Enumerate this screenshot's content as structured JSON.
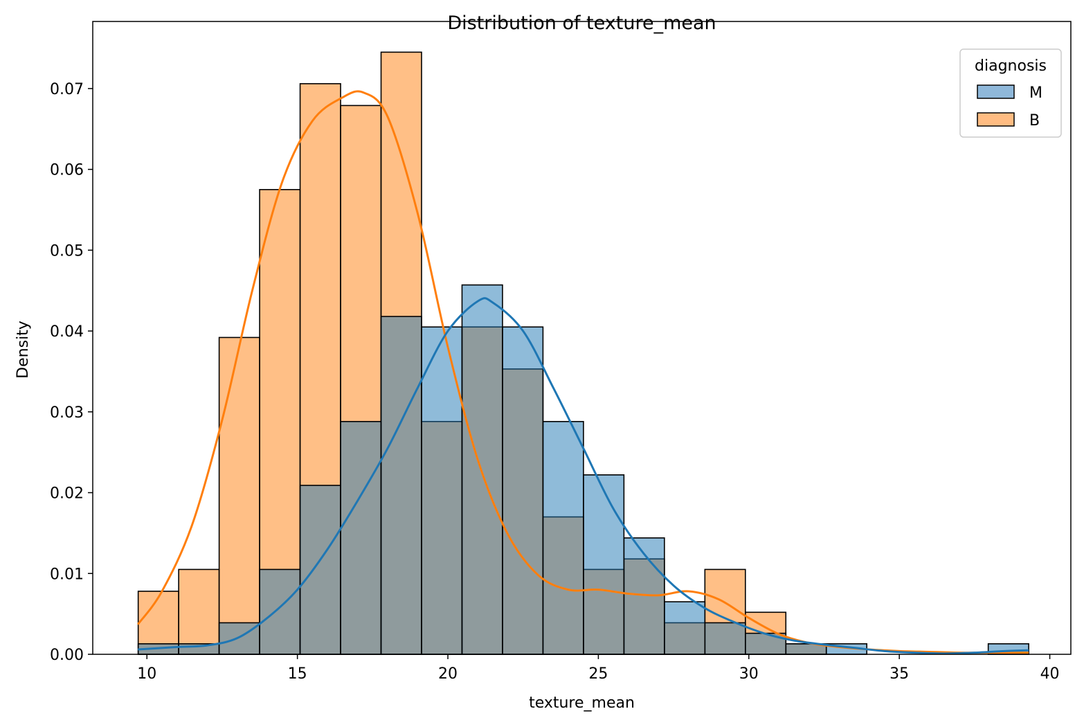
{
  "chart_data": {
    "type": "histogram",
    "title": "Distribution of texture_mean",
    "xlabel": "texture_mean",
    "ylabel": "Density",
    "xlim": [
      8.2,
      40.7
    ],
    "ylim": [
      0,
      0.0783
    ],
    "xticks": [
      10,
      15,
      20,
      25,
      30,
      35,
      40
    ],
    "yticks": [
      0.0,
      0.01,
      0.02,
      0.03,
      0.04,
      0.05,
      0.06,
      0.07
    ],
    "ytick_labels": [
      "0.00",
      "0.01",
      "0.02",
      "0.03",
      "0.04",
      "0.05",
      "0.06",
      "0.07"
    ],
    "grid": false,
    "legend": {
      "title": "diagnosis",
      "placement": "top-right",
      "entries": [
        "M",
        "B"
      ]
    },
    "bin_edges": [
      9.71,
      11.055,
      12.4,
      13.745,
      15.09,
      16.435,
      17.78,
      19.125,
      20.47,
      21.815,
      23.16,
      24.505,
      25.85,
      27.195,
      28.54,
      29.885,
      31.23,
      32.575,
      33.92,
      35.265,
      36.61,
      37.955,
      39.3
    ],
    "series": [
      {
        "name": "B",
        "color": "#ff7f0e",
        "fill": "#ffbc82",
        "density": [
          0.0078,
          0.0105,
          0.0392,
          0.0575,
          0.0706,
          0.0679,
          0.0745,
          0.0288,
          0.0405,
          0.0353,
          0.017,
          0.0105,
          0.0118,
          0.0039,
          0.0105,
          0.0052,
          0.0013,
          0.0,
          0.0,
          0.0,
          0.0,
          0.0
        ],
        "kde": [
          [
            9.7,
            0.0037
          ],
          [
            10.5,
            0.0078
          ],
          [
            11.5,
            0.016
          ],
          [
            12.5,
            0.029
          ],
          [
            13.5,
            0.045
          ],
          [
            14.5,
            0.0585
          ],
          [
            15.5,
            0.066
          ],
          [
            16.5,
            0.0689
          ],
          [
            17.2,
            0.0695
          ],
          [
            18.0,
            0.0665
          ],
          [
            19.0,
            0.0545
          ],
          [
            20.0,
            0.038
          ],
          [
            21.0,
            0.024
          ],
          [
            22.0,
            0.0148
          ],
          [
            23.0,
            0.0098
          ],
          [
            24.0,
            0.008
          ],
          [
            25.0,
            0.008
          ],
          [
            26.0,
            0.0075
          ],
          [
            27.0,
            0.0073
          ],
          [
            28.0,
            0.0078
          ],
          [
            29.0,
            0.0068
          ],
          [
            30.0,
            0.0045
          ],
          [
            31.0,
            0.0025
          ],
          [
            32.0,
            0.0014
          ],
          [
            33.0,
            0.0009
          ],
          [
            34.0,
            0.0006
          ],
          [
            35.0,
            0.0004
          ],
          [
            36.0,
            0.0003
          ],
          [
            37.0,
            0.0002
          ],
          [
            38.0,
            0.0002
          ],
          [
            39.3,
            0.0002
          ]
        ]
      },
      {
        "name": "M",
        "color": "#1f77b4",
        "fill": "#8fb8da",
        "density": [
          0.0013,
          0.0013,
          0.0039,
          0.0105,
          0.0209,
          0.0288,
          0.0418,
          0.0405,
          0.0457,
          0.0405,
          0.0288,
          0.0222,
          0.0144,
          0.0065,
          0.0039,
          0.0026,
          0.0013,
          0.0013,
          0.0,
          0.0,
          0.0,
          0.0013
        ],
        "kde": [
          [
            9.7,
            0.0006
          ],
          [
            11.0,
            0.0009
          ],
          [
            12.0,
            0.0011
          ],
          [
            13.0,
            0.002
          ],
          [
            14.0,
            0.0045
          ],
          [
            15.0,
            0.008
          ],
          [
            16.0,
            0.013
          ],
          [
            17.0,
            0.019
          ],
          [
            18.0,
            0.0255
          ],
          [
            19.0,
            0.033
          ],
          [
            20.0,
            0.04
          ],
          [
            21.0,
            0.0437
          ],
          [
            21.5,
            0.0435
          ],
          [
            22.5,
            0.04
          ],
          [
            23.5,
            0.033
          ],
          [
            24.5,
            0.0255
          ],
          [
            25.5,
            0.018
          ],
          [
            26.5,
            0.0125
          ],
          [
            27.5,
            0.0085
          ],
          [
            28.5,
            0.0058
          ],
          [
            29.5,
            0.004
          ],
          [
            30.5,
            0.0026
          ],
          [
            31.5,
            0.0017
          ],
          [
            32.5,
            0.0012
          ],
          [
            33.5,
            0.0008
          ],
          [
            34.5,
            0.0004
          ],
          [
            35.5,
            0.0002
          ],
          [
            36.5,
            0.0001
          ],
          [
            37.5,
            0.0002
          ],
          [
            38.5,
            0.0004
          ],
          [
            39.3,
            0.0005
          ]
        ]
      }
    ]
  }
}
